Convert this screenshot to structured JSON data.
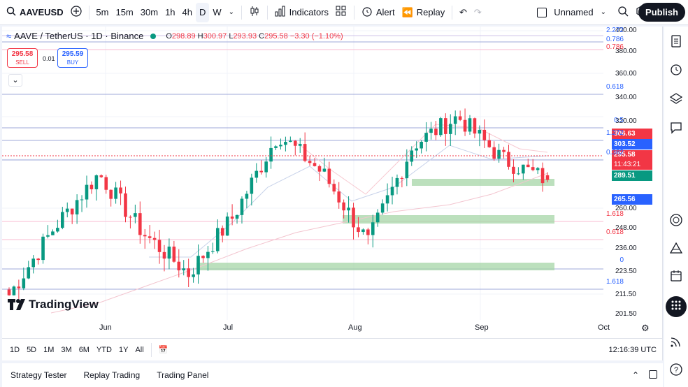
{
  "topbar": {
    "symbol": "AAVEUSD",
    "intervals": [
      "5m",
      "15m",
      "30m",
      "1h",
      "4h",
      "D",
      "W"
    ],
    "active_interval": "D",
    "indicators": "Indicators",
    "alert": "Alert",
    "replay": "Replay",
    "layout_name": "Unnamed",
    "publish": "Publish"
  },
  "legend": {
    "title": "AAVE / TetherUS · 1D · Binance",
    "o_label": "O",
    "o": "298.89",
    "h_label": "H",
    "h": "300.97",
    "l_label": "L",
    "l": "293.93",
    "c_label": "C",
    "c": "295.58",
    "change": "−3.30 (−1.10%)"
  },
  "trade": {
    "sell_price": "295.58",
    "sell_label": "SELL",
    "spread": "0.01",
    "buy_price": "295.59",
    "buy_label": "BUY"
  },
  "price_axis": {
    "ticks": [
      "400.00",
      "380.00",
      "360.00",
      "340.00",
      "320.00",
      "300.00",
      "260.00",
      "248.00",
      "236.00",
      "223.50",
      "211.50",
      "201.50"
    ]
  },
  "price_labels": [
    {
      "value": "306.63",
      "color": "#f23645"
    },
    {
      "value": "303.52",
      "color": "#2962ff"
    },
    {
      "value": "295.58",
      "color": "#f23645"
    },
    {
      "value": "11:43:21",
      "color": "#f23645"
    },
    {
      "value": "289.51",
      "color": "#089981"
    },
    {
      "value": "265.56",
      "color": "#2962ff"
    }
  ],
  "fib_labels": [
    {
      "text": "2.272",
      "color": "#2962ff"
    },
    {
      "text": "0.786",
      "color": "#2962ff"
    },
    {
      "text": "0.786",
      "color": "#f23645"
    },
    {
      "text": "0.618",
      "color": "#2962ff"
    },
    {
      "text": "0.5",
      "color": "#2962ff"
    },
    {
      "text": "1.272",
      "color": "#2962ff"
    },
    {
      "text": "0.382",
      "color": "#2962ff"
    },
    {
      "text": "1.618",
      "color": "#f23645"
    },
    {
      "text": "0.618",
      "color": "#f23645"
    },
    {
      "text": "0",
      "color": "#2962ff"
    },
    {
      "text": "1.618",
      "color": "#2962ff"
    }
  ],
  "time_axis": {
    "labels": [
      "Jun",
      "Jul",
      "Aug",
      "Sep",
      "Oct"
    ]
  },
  "range_buttons": [
    "1D",
    "5D",
    "1M",
    "3M",
    "6M",
    "YTD",
    "1Y",
    "All"
  ],
  "clock": "12:16:39 UTC",
  "panels": [
    "Strategy Tester",
    "Replay Trading",
    "Trading Panel"
  ],
  "brand": "TradingView",
  "colors": {
    "up": "#089981",
    "down": "#f23645",
    "zone": "#a5d6a7",
    "accent": "#2962ff"
  },
  "chart_data": {
    "type": "candlestick",
    "series": "AAVE / TetherUS 1D",
    "approx_closes": [
      {
        "period": "mid-May",
        "value": 215
      },
      {
        "period": "late-May",
        "value": 262
      },
      {
        "period": "early-Jun",
        "value": 300
      },
      {
        "period": "mid-Jun",
        "value": 258
      },
      {
        "period": "late-Jun",
        "value": 230
      },
      {
        "period": "early-Jul",
        "value": 270
      },
      {
        "period": "mid-Jul",
        "value": 328
      },
      {
        "period": "late-Jul",
        "value": 300
      },
      {
        "period": "early-Aug",
        "value": 252
      },
      {
        "period": "mid-Aug",
        "value": 320
      },
      {
        "period": "late-Aug",
        "value": 340
      },
      {
        "period": "early-Sep",
        "value": 310
      },
      {
        "period": "mid-Sep",
        "value": 295.58
      }
    ],
    "last": {
      "open": 298.89,
      "high": 300.97,
      "low": 293.93,
      "close": 295.58
    },
    "ylim": [
      201.5,
      400
    ]
  }
}
